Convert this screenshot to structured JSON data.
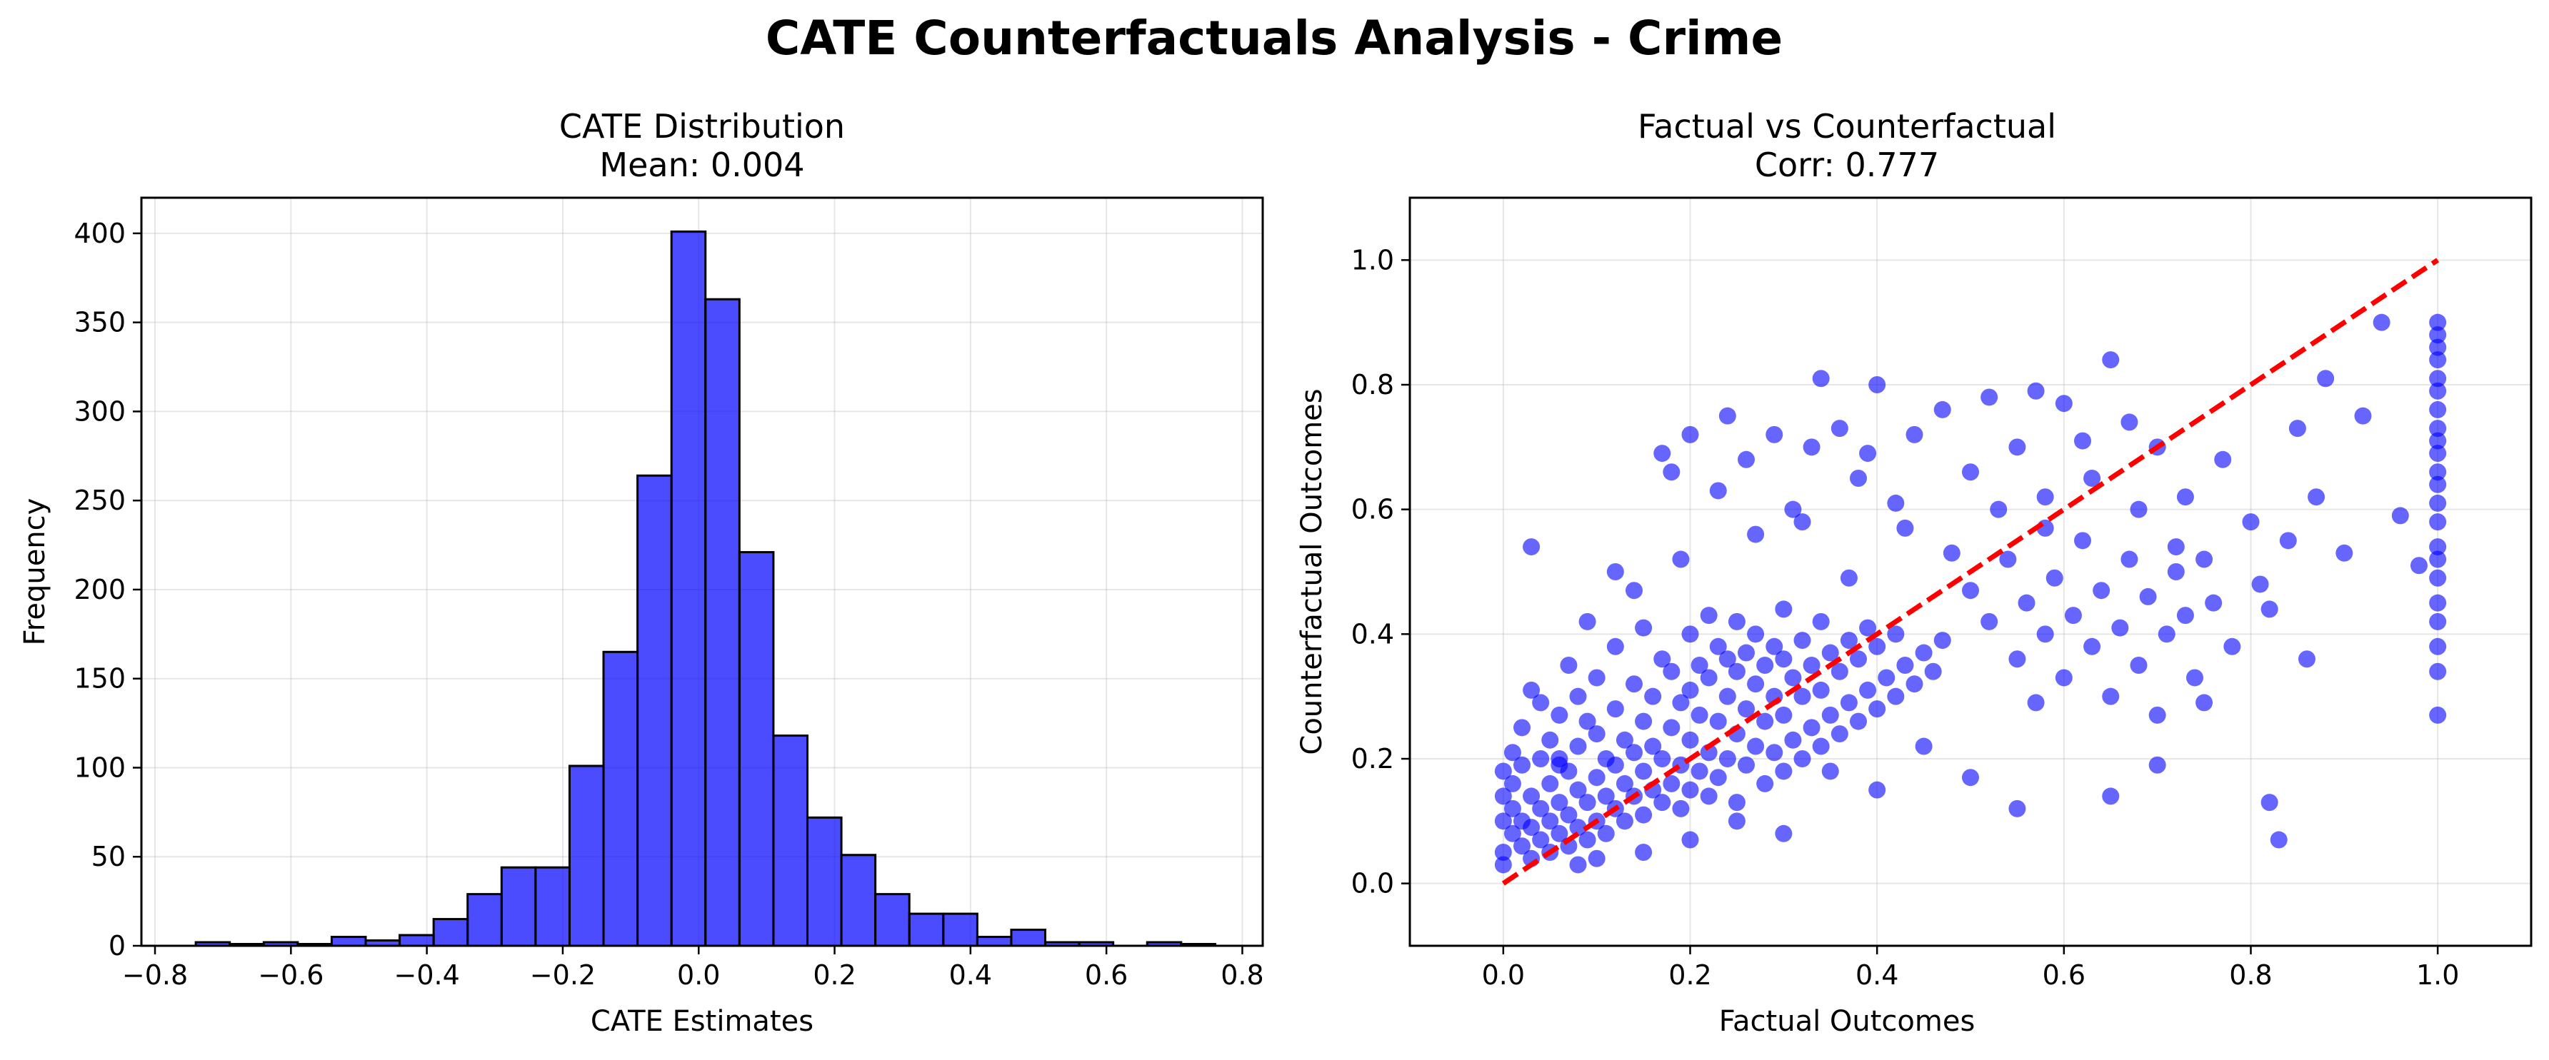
{
  "figure": {
    "title": "CATE Counterfactuals Analysis - Crime"
  },
  "chart_data": [
    {
      "type": "bar",
      "title": "CATE Distribution",
      "subtitle": "Mean: 0.004",
      "xlabel": "CATE Estimates",
      "ylabel": "Frequency",
      "xlim": [
        -0.82,
        0.83
      ],
      "ylim": [
        0,
        420
      ],
      "xticks": [
        -0.8,
        -0.6,
        -0.4,
        -0.2,
        0.0,
        0.2,
        0.4,
        0.6,
        0.8
      ],
      "xtick_labels": [
        "−0.8",
        "−0.6",
        "−0.4",
        "−0.2",
        "0.0",
        "0.2",
        "0.4",
        "0.6",
        "0.8"
      ],
      "yticks": [
        0,
        50,
        100,
        150,
        200,
        250,
        300,
        350,
        400
      ],
      "ytick_labels": [
        "0",
        "50",
        "100",
        "150",
        "200",
        "250",
        "300",
        "350",
        "400"
      ],
      "grid": true,
      "bin_edges": [
        -0.74,
        -0.69,
        -0.64,
        -0.59,
        -0.54,
        -0.49,
        -0.44,
        -0.39,
        -0.34,
        -0.29,
        -0.24,
        -0.19,
        -0.14,
        -0.09,
        -0.04,
        0.01,
        0.06,
        0.11,
        0.16,
        0.21,
        0.26,
        0.31,
        0.36,
        0.41,
        0.46,
        0.51,
        0.56,
        0.61,
        0.66,
        0.71,
        0.76
      ],
      "counts": [
        2,
        1,
        2,
        1,
        5,
        3,
        6,
        15,
        29,
        44,
        44,
        101,
        165,
        264,
        401,
        363,
        221,
        118,
        72,
        51,
        29,
        18,
        18,
        5,
        9,
        2,
        2,
        0,
        2,
        1
      ],
      "bar_color": "#0000ff",
      "edge_color": "#000000"
    },
    {
      "type": "scatter",
      "title": "Factual vs Counterfactual",
      "subtitle": "Corr: 0.777",
      "xlabel": "Factual Outcomes",
      "ylabel": "Counterfactual Outcomes",
      "xlim": [
        -0.1,
        1.1
      ],
      "ylim": [
        -0.1,
        1.1
      ],
      "xticks": [
        0.0,
        0.2,
        0.4,
        0.6,
        0.8,
        1.0
      ],
      "xtick_labels": [
        "0.0",
        "0.2",
        "0.4",
        "0.6",
        "0.8",
        "1.0"
      ],
      "yticks": [
        0.0,
        0.2,
        0.4,
        0.6,
        0.8,
        1.0
      ],
      "ytick_labels": [
        "0.0",
        "0.2",
        "0.4",
        "0.6",
        "0.8",
        "1.0"
      ],
      "grid": true,
      "point_color": "#0000ff",
      "reference_line": {
        "x": [
          0,
          1
        ],
        "y": [
          0,
          1
        ],
        "color": "#ff0000",
        "style": "dashed"
      },
      "points": [
        [
          0.0,
          0.05
        ],
        [
          0.0,
          0.1
        ],
        [
          0.0,
          0.14
        ],
        [
          0.0,
          0.18
        ],
        [
          0.0,
          0.03
        ],
        [
          0.01,
          0.08
        ],
        [
          0.01,
          0.12
        ],
        [
          0.01,
          0.16
        ],
        [
          0.01,
          0.21
        ],
        [
          0.02,
          0.06
        ],
        [
          0.02,
          0.1
        ],
        [
          0.02,
          0.19
        ],
        [
          0.02,
          0.25
        ],
        [
          0.03,
          0.04
        ],
        [
          0.03,
          0.09
        ],
        [
          0.03,
          0.14
        ],
        [
          0.03,
          0.31
        ],
        [
          0.04,
          0.07
        ],
        [
          0.04,
          0.12
        ],
        [
          0.04,
          0.2
        ],
        [
          0.04,
          0.29
        ],
        [
          0.05,
          0.05
        ],
        [
          0.05,
          0.1
        ],
        [
          0.05,
          0.16
        ],
        [
          0.05,
          0.23
        ],
        [
          0.06,
          0.08
        ],
        [
          0.06,
          0.13
        ],
        [
          0.06,
          0.19
        ],
        [
          0.06,
          0.27
        ],
        [
          0.07,
          0.06
        ],
        [
          0.07,
          0.11
        ],
        [
          0.07,
          0.18
        ],
        [
          0.07,
          0.35
        ],
        [
          0.08,
          0.09
        ],
        [
          0.08,
          0.15
        ],
        [
          0.08,
          0.22
        ],
        [
          0.08,
          0.3
        ],
        [
          0.09,
          0.07
        ],
        [
          0.09,
          0.13
        ],
        [
          0.09,
          0.26
        ],
        [
          0.1,
          0.1
        ],
        [
          0.1,
          0.17
        ],
        [
          0.1,
          0.24
        ],
        [
          0.1,
          0.33
        ],
        [
          0.11,
          0.08
        ],
        [
          0.11,
          0.14
        ],
        [
          0.11,
          0.2
        ],
        [
          0.12,
          0.12
        ],
        [
          0.12,
          0.19
        ],
        [
          0.12,
          0.28
        ],
        [
          0.12,
          0.38
        ],
        [
          0.13,
          0.1
        ],
        [
          0.13,
          0.16
        ],
        [
          0.13,
          0.23
        ],
        [
          0.14,
          0.14
        ],
        [
          0.14,
          0.21
        ],
        [
          0.14,
          0.32
        ],
        [
          0.15,
          0.11
        ],
        [
          0.15,
          0.18
        ],
        [
          0.15,
          0.26
        ],
        [
          0.15,
          0.41
        ],
        [
          0.16,
          0.15
        ],
        [
          0.16,
          0.22
        ],
        [
          0.16,
          0.3
        ],
        [
          0.17,
          0.13
        ],
        [
          0.17,
          0.2
        ],
        [
          0.17,
          0.36
        ],
        [
          0.18,
          0.16
        ],
        [
          0.18,
          0.25
        ],
        [
          0.18,
          0.34
        ],
        [
          0.19,
          0.12
        ],
        [
          0.19,
          0.19
        ],
        [
          0.19,
          0.29
        ],
        [
          0.2,
          0.15
        ],
        [
          0.2,
          0.23
        ],
        [
          0.2,
          0.31
        ],
        [
          0.2,
          0.4
        ],
        [
          0.21,
          0.18
        ],
        [
          0.21,
          0.27
        ],
        [
          0.21,
          0.35
        ],
        [
          0.22,
          0.14
        ],
        [
          0.22,
          0.21
        ],
        [
          0.22,
          0.33
        ],
        [
          0.22,
          0.43
        ],
        [
          0.23,
          0.17
        ],
        [
          0.23,
          0.26
        ],
        [
          0.23,
          0.38
        ],
        [
          0.24,
          0.2
        ],
        [
          0.24,
          0.3
        ],
        [
          0.24,
          0.36
        ],
        [
          0.25,
          0.13
        ],
        [
          0.25,
          0.24
        ],
        [
          0.25,
          0.34
        ],
        [
          0.25,
          0.42
        ],
        [
          0.26,
          0.19
        ],
        [
          0.26,
          0.28
        ],
        [
          0.26,
          0.37
        ],
        [
          0.27,
          0.22
        ],
        [
          0.27,
          0.32
        ],
        [
          0.27,
          0.4
        ],
        [
          0.28,
          0.16
        ],
        [
          0.28,
          0.26
        ],
        [
          0.28,
          0.35
        ],
        [
          0.29,
          0.21
        ],
        [
          0.29,
          0.3
        ],
        [
          0.29,
          0.38
        ],
        [
          0.3,
          0.18
        ],
        [
          0.3,
          0.27
        ],
        [
          0.3,
          0.36
        ],
        [
          0.3,
          0.44
        ],
        [
          0.31,
          0.23
        ],
        [
          0.31,
          0.33
        ],
        [
          0.32,
          0.2
        ],
        [
          0.32,
          0.3
        ],
        [
          0.32,
          0.39
        ],
        [
          0.33,
          0.25
        ],
        [
          0.33,
          0.35
        ],
        [
          0.34,
          0.22
        ],
        [
          0.34,
          0.31
        ],
        [
          0.34,
          0.42
        ],
        [
          0.35,
          0.27
        ],
        [
          0.35,
          0.37
        ],
        [
          0.36,
          0.24
        ],
        [
          0.36,
          0.34
        ],
        [
          0.37,
          0.29
        ],
        [
          0.37,
          0.39
        ],
        [
          0.38,
          0.26
        ],
        [
          0.38,
          0.36
        ],
        [
          0.39,
          0.31
        ],
        [
          0.39,
          0.41
        ],
        [
          0.4,
          0.28
        ],
        [
          0.4,
          0.38
        ],
        [
          0.41,
          0.33
        ],
        [
          0.42,
          0.3
        ],
        [
          0.42,
          0.4
        ],
        [
          0.43,
          0.35
        ],
        [
          0.44,
          0.32
        ],
        [
          0.45,
          0.37
        ],
        [
          0.46,
          0.34
        ],
        [
          0.47,
          0.39
        ],
        [
          0.03,
          0.54
        ],
        [
          0.12,
          0.5
        ],
        [
          0.17,
          0.69
        ],
        [
          0.18,
          0.66
        ],
        [
          0.2,
          0.72
        ],
        [
          0.23,
          0.63
        ],
        [
          0.24,
          0.75
        ],
        [
          0.26,
          0.68
        ],
        [
          0.29,
          0.72
        ],
        [
          0.31,
          0.6
        ],
        [
          0.33,
          0.7
        ],
        [
          0.34,
          0.81
        ],
        [
          0.36,
          0.73
        ],
        [
          0.38,
          0.65
        ],
        [
          0.39,
          0.69
        ],
        [
          0.4,
          0.8
        ],
        [
          0.42,
          0.61
        ],
        [
          0.44,
          0.72
        ],
        [
          0.47,
          0.76
        ],
        [
          0.5,
          0.66
        ],
        [
          0.52,
          0.78
        ],
        [
          0.55,
          0.7
        ],
        [
          0.57,
          0.79
        ],
        [
          0.58,
          0.62
        ],
        [
          0.6,
          0.77
        ],
        [
          0.62,
          0.71
        ],
        [
          0.65,
          0.84
        ],
        [
          0.67,
          0.74
        ],
        [
          0.7,
          0.7
        ],
        [
          0.73,
          0.62
        ],
        [
          0.5,
          0.47
        ],
        [
          0.52,
          0.42
        ],
        [
          0.54,
          0.52
        ],
        [
          0.55,
          0.36
        ],
        [
          0.56,
          0.45
        ],
        [
          0.57,
          0.29
        ],
        [
          0.58,
          0.4
        ],
        [
          0.59,
          0.49
        ],
        [
          0.6,
          0.33
        ],
        [
          0.61,
          0.43
        ],
        [
          0.62,
          0.55
        ],
        [
          0.63,
          0.38
        ],
        [
          0.64,
          0.47
        ],
        [
          0.65,
          0.3
        ],
        [
          0.66,
          0.41
        ],
        [
          0.67,
          0.52
        ],
        [
          0.68,
          0.35
        ],
        [
          0.69,
          0.46
        ],
        [
          0.7,
          0.27
        ],
        [
          0.71,
          0.4
        ],
        [
          0.72,
          0.5
        ],
        [
          0.73,
          0.43
        ],
        [
          0.74,
          0.33
        ],
        [
          0.75,
          0.52
        ],
        [
          0.76,
          0.45
        ],
        [
          0.78,
          0.38
        ],
        [
          0.8,
          0.58
        ],
        [
          0.81,
          0.48
        ],
        [
          0.82,
          0.44
        ],
        [
          0.84,
          0.55
        ],
        [
          0.85,
          0.73
        ],
        [
          0.86,
          0.36
        ],
        [
          0.87,
          0.62
        ],
        [
          0.88,
          0.81
        ],
        [
          0.9,
          0.53
        ],
        [
          0.92,
          0.75
        ],
        [
          0.94,
          0.9
        ],
        [
          0.96,
          0.59
        ],
        [
          0.98,
          0.51
        ],
        [
          0.83,
          0.07
        ],
        [
          0.82,
          0.13
        ],
        [
          0.75,
          0.29
        ],
        [
          0.7,
          0.19
        ],
        [
          0.65,
          0.14
        ],
        [
          0.55,
          0.12
        ],
        [
          0.5,
          0.17
        ],
        [
          0.45,
          0.22
        ],
        [
          0.4,
          0.15
        ],
        [
          0.35,
          0.18
        ],
        [
          0.3,
          0.08
        ],
        [
          0.25,
          0.1
        ],
        [
          0.2,
          0.07
        ],
        [
          0.15,
          0.05
        ],
        [
          0.1,
          0.04
        ],
        [
          0.08,
          0.03
        ],
        [
          0.06,
          0.2
        ],
        [
          0.09,
          0.42
        ],
        [
          0.14,
          0.47
        ],
        [
          0.19,
          0.52
        ],
        [
          0.27,
          0.56
        ],
        [
          0.32,
          0.58
        ],
        [
          0.37,
          0.49
        ],
        [
          0.43,
          0.57
        ],
        [
          0.48,
          0.53
        ],
        [
          0.53,
          0.6
        ],
        [
          0.58,
          0.57
        ],
        [
          0.63,
          0.65
        ],
        [
          0.68,
          0.6
        ],
        [
          0.72,
          0.54
        ],
        [
          0.77,
          0.68
        ],
        [
          1.0,
          0.27
        ],
        [
          1.0,
          0.34
        ],
        [
          1.0,
          0.38
        ],
        [
          1.0,
          0.42
        ],
        [
          1.0,
          0.45
        ],
        [
          1.0,
          0.49
        ],
        [
          1.0,
          0.52
        ],
        [
          1.0,
          0.54
        ],
        [
          1.0,
          0.58
        ],
        [
          1.0,
          0.61
        ],
        [
          1.0,
          0.64
        ],
        [
          1.0,
          0.66
        ],
        [
          1.0,
          0.69
        ],
        [
          1.0,
          0.71
        ],
        [
          1.0,
          0.73
        ],
        [
          1.0,
          0.76
        ],
        [
          1.0,
          0.79
        ],
        [
          1.0,
          0.81
        ],
        [
          1.0,
          0.84
        ],
        [
          1.0,
          0.86
        ],
        [
          1.0,
          0.88
        ],
        [
          1.0,
          0.9
        ]
      ]
    }
  ]
}
